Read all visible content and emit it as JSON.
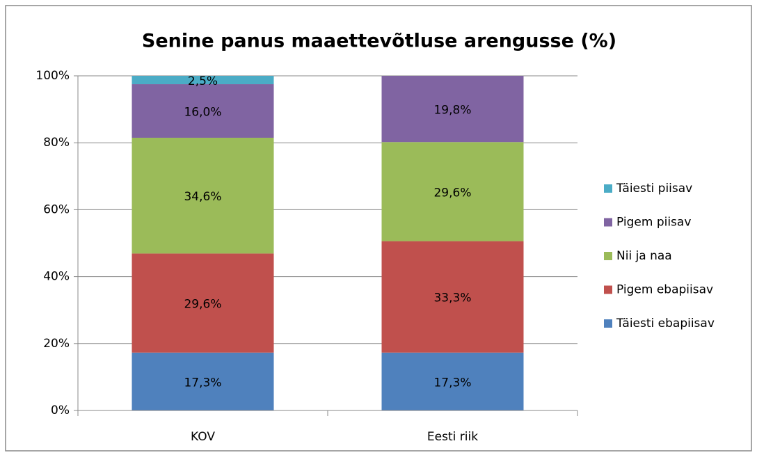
{
  "chart_data": {
    "type": "stacked_bar",
    "title": "Senine panus maaettevõtluse arengusse (%)",
    "categories": [
      "KOV",
      "Eesti riik"
    ],
    "series": [
      {
        "name": "Täiesti ebapiisav",
        "color": "#4f81bd",
        "values": [
          17.3,
          17.3
        ],
        "value_labels": [
          "17,3%",
          "17,3%"
        ]
      },
      {
        "name": "Pigem ebapiisav",
        "color": "#c0504d",
        "values": [
          29.6,
          33.3
        ],
        "value_labels": [
          "29,6%",
          "33,3%"
        ]
      },
      {
        "name": "Nii ja naa",
        "color": "#9bbb59",
        "values": [
          34.6,
          29.6
        ],
        "value_labels": [
          "34,6%",
          "29,6%"
        ]
      },
      {
        "name": "Pigem piisav",
        "color": "#8064a2",
        "values": [
          16.0,
          19.8
        ],
        "value_labels": [
          "16,0%",
          "19,8%"
        ]
      },
      {
        "name": "Täiesti piisav",
        "color": "#4bacc6",
        "values": [
          2.5,
          0
        ],
        "value_labels": [
          "2,5%",
          null
        ]
      }
    ],
    "ylim": [
      0,
      100
    ],
    "yticks": [
      {
        "value": 0,
        "label": "0%"
      },
      {
        "value": 20,
        "label": "20%"
      },
      {
        "value": 40,
        "label": "40%"
      },
      {
        "value": 60,
        "label": "60%"
      },
      {
        "value": 80,
        "label": "80%"
      },
      {
        "value": 100,
        "label": "100%"
      }
    ],
    "grid": true,
    "legend": "right"
  }
}
